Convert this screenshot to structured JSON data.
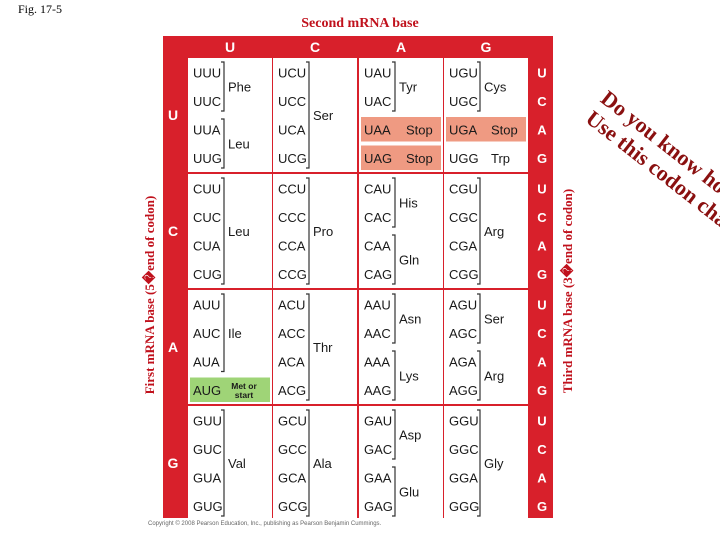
{
  "figure_label": "Fig. 17-5",
  "title": "Second mRNA base",
  "first_base_label": "First mRNA base (5�end of codon)",
  "third_base_label": "Third mRNA base (3�end of codon)",
  "question": [
    "Do you know how to",
    "Use this codon chart?"
  ],
  "copyright": "Copyright © 2008 Pearson Education, Inc., publishing as Pearson Benjamin Cummings.",
  "bases": [
    "U",
    "C",
    "A",
    "G"
  ],
  "colors": {
    "red": "#d8202b",
    "panel": "#ffffff",
    "stop": "#ef9a82",
    "start": "#9fd477"
  },
  "rows": [
    {
      "first": "U",
      "cells": [
        {
          "codons": [
            "UUU",
            "UUC",
            "UUA",
            "UUG"
          ],
          "groups": [
            {
              "name": "Phe",
              "span": [
                0,
                1
              ]
            },
            {
              "name": "Leu",
              "span": [
                2,
                3
              ]
            }
          ]
        },
        {
          "codons": [
            "UCU",
            "UCC",
            "UCA",
            "UCG"
          ],
          "groups": [
            {
              "name": "Ser",
              "span": [
                0,
                3
              ]
            }
          ]
        },
        {
          "codons": [
            "UAU",
            "UAC",
            "UAA",
            "UAG"
          ],
          "groups": [
            {
              "name": "Tyr",
              "span": [
                0,
                1
              ]
            },
            {
              "name": "Stop",
              "span": [
                2,
                2
              ],
              "stop": true
            },
            {
              "name": "Stop",
              "span": [
                3,
                3
              ],
              "stop": true
            }
          ]
        },
        {
          "codons": [
            "UGU",
            "UGC",
            "UGA",
            "UGG"
          ],
          "groups": [
            {
              "name": "Cys",
              "span": [
                0,
                1
              ]
            },
            {
              "name": "Stop",
              "span": [
                2,
                2
              ],
              "stop": true
            },
            {
              "name": "Trp",
              "span": [
                3,
                3
              ]
            }
          ]
        }
      ]
    },
    {
      "first": "C",
      "cells": [
        {
          "codons": [
            "CUU",
            "CUC",
            "CUA",
            "CUG"
          ],
          "groups": [
            {
              "name": "Leu",
              "span": [
                0,
                3
              ]
            }
          ]
        },
        {
          "codons": [
            "CCU",
            "CCC",
            "CCA",
            "CCG"
          ],
          "groups": [
            {
              "name": "Pro",
              "span": [
                0,
                3
              ]
            }
          ]
        },
        {
          "codons": [
            "CAU",
            "CAC",
            "CAA",
            "CAG"
          ],
          "groups": [
            {
              "name": "His",
              "span": [
                0,
                1
              ]
            },
            {
              "name": "Gln",
              "span": [
                2,
                3
              ]
            }
          ]
        },
        {
          "codons": [
            "CGU",
            "CGC",
            "CGA",
            "CGG"
          ],
          "groups": [
            {
              "name": "Arg",
              "span": [
                0,
                3
              ]
            }
          ]
        }
      ]
    },
    {
      "first": "A",
      "cells": [
        {
          "codons": [
            "AUU",
            "AUC",
            "AUA",
            "AUG"
          ],
          "groups": [
            {
              "name": "Ile",
              "span": [
                0,
                2
              ]
            },
            {
              "name": "Met or start",
              "span": [
                3,
                3
              ],
              "start": true
            }
          ]
        },
        {
          "codons": [
            "ACU",
            "ACC",
            "ACA",
            "ACG"
          ],
          "groups": [
            {
              "name": "Thr",
              "span": [
                0,
                3
              ]
            }
          ]
        },
        {
          "codons": [
            "AAU",
            "AAC",
            "AAA",
            "AAG"
          ],
          "groups": [
            {
              "name": "Asn",
              "span": [
                0,
                1
              ]
            },
            {
              "name": "Lys",
              "span": [
                2,
                3
              ]
            }
          ]
        },
        {
          "codons": [
            "AGU",
            "AGC",
            "AGA",
            "AGG"
          ],
          "groups": [
            {
              "name": "Ser",
              "span": [
                0,
                1
              ]
            },
            {
              "name": "Arg",
              "span": [
                2,
                3
              ]
            }
          ]
        }
      ]
    },
    {
      "first": "G",
      "cells": [
        {
          "codons": [
            "GUU",
            "GUC",
            "GUA",
            "GUG"
          ],
          "groups": [
            {
              "name": "Val",
              "span": [
                0,
                3
              ]
            }
          ]
        },
        {
          "codons": [
            "GCU",
            "GCC",
            "GCA",
            "GCG"
          ],
          "groups": [
            {
              "name": "Ala",
              "span": [
                0,
                3
              ]
            }
          ]
        },
        {
          "codons": [
            "GAU",
            "GAC",
            "GAA",
            "GAG"
          ],
          "groups": [
            {
              "name": "Asp",
              "span": [
                0,
                1
              ]
            },
            {
              "name": "Glu",
              "span": [
                2,
                3
              ]
            }
          ]
        },
        {
          "codons": [
            "GGU",
            "GGC",
            "GGA",
            "GGG"
          ],
          "groups": [
            {
              "name": "Gly",
              "span": [
                0,
                3
              ]
            }
          ]
        }
      ]
    }
  ]
}
